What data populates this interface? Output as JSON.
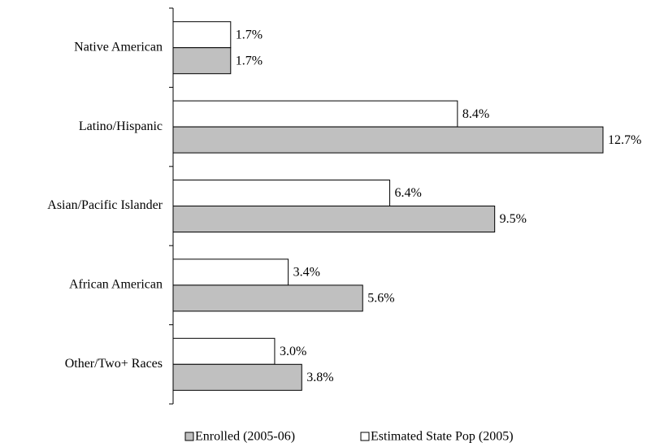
{
  "chart_data": {
    "type": "bar",
    "orientation": "horizontal",
    "categories": [
      "Native American",
      "Latino/Hispanic",
      "Asian/Pacific Islander",
      "African American",
      "Other/Two+ Races"
    ],
    "series": [
      {
        "name": "Enrolled (2005-06)",
        "color": "#c0c0c0",
        "values": [
          1.7,
          12.7,
          9.5,
          5.6,
          3.8
        ],
        "value_labels": [
          "1.7%",
          "12.7%",
          "9.5%",
          "5.6%",
          "3.8%"
        ]
      },
      {
        "name": "Estimated State Pop (2005)",
        "color": "#ffffff",
        "values": [
          1.7,
          8.4,
          6.4,
          3.4,
          3.0
        ],
        "value_labels": [
          "1.7%",
          "8.4%",
          "6.4%",
          "3.4%",
          "3.0%"
        ]
      }
    ],
    "legend": "bottom"
  }
}
